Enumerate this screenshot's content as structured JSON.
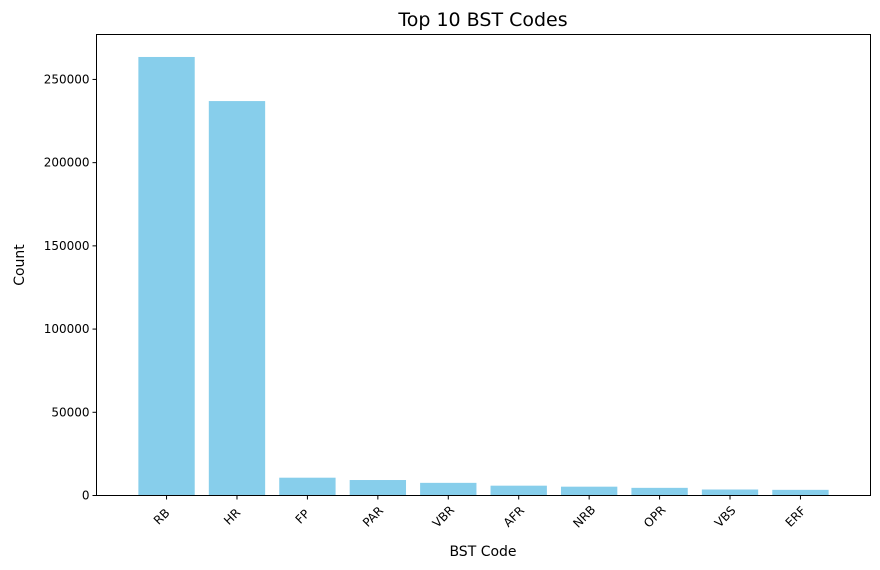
{
  "chart_data": {
    "type": "bar",
    "title": "Top 10 BST Codes",
    "xlabel": "BST Code",
    "ylabel": "Count",
    "categories": [
      "RB",
      "HR",
      "FP",
      "PAR",
      "VBR",
      "AFR",
      "NRB",
      "OPR",
      "VBS",
      "ERF"
    ],
    "values": [
      263500,
      237000,
      10700,
      9300,
      7600,
      5900,
      5300,
      4600,
      3600,
      3400
    ],
    "ylim": [
      0,
      277000
    ],
    "yticks": [
      0,
      50000,
      100000,
      150000,
      200000,
      250000
    ],
    "ytick_labels": [
      "0",
      "50000",
      "100000",
      "150000",
      "200000",
      "250000"
    ],
    "bar_color": "#87ceeb",
    "grid": false,
    "legend": "none"
  }
}
